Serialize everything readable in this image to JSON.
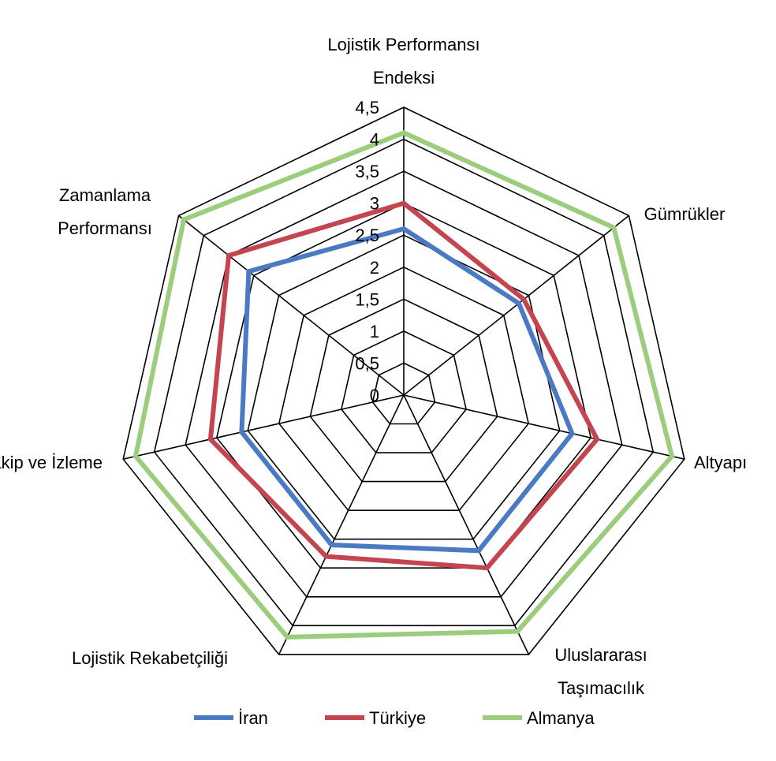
{
  "chart_data": {
    "type": "radar",
    "axes": [
      [
        "Lojistik Performansı",
        "Endeksi"
      ],
      [
        "Gümrükler"
      ],
      [
        "Altyapı"
      ],
      [
        "Uluslararası",
        "Taşımacılık"
      ],
      [
        "Lojistik Rekabetçiliği"
      ],
      [
        "Takip ve İzleme"
      ],
      [
        "Zamanlama",
        "Performansı"
      ]
    ],
    "rlim": [
      0,
      4.5
    ],
    "tick_step": 0.5,
    "grid_levels": 9,
    "ticks": [
      "0",
      "0,5",
      "1",
      "1,5",
      "2",
      "2,5",
      "3",
      "3,5",
      "4",
      "4,5"
    ],
    "series": [
      {
        "name": "İran",
        "color": "#4a7ac4",
        "values": [
          2.6,
          2.3,
          2.7,
          2.7,
          2.6,
          2.6,
          3.1
        ]
      },
      {
        "name": "Türkiye",
        "color": "#c4444f",
        "values": [
          3.0,
          2.4,
          3.1,
          3.0,
          2.8,
          3.1,
          3.5
        ]
      },
      {
        "name": "Almanya",
        "color": "#9bcd7c",
        "values": [
          4.1,
          4.2,
          4.3,
          4.1,
          4.2,
          4.3,
          4.4
        ]
      }
    ],
    "legend": "bottom",
    "grid": true
  }
}
